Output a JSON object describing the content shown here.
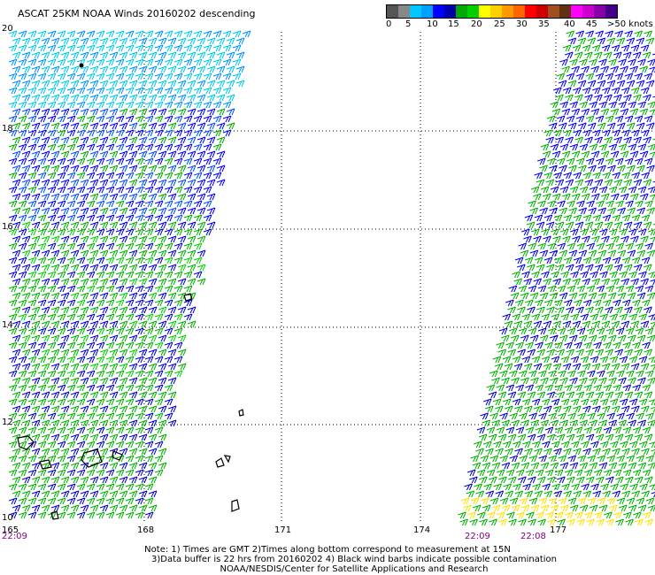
{
  "title": "ASCAT 25KM NOAA Winds 20160202 descending",
  "legend": {
    "colors": [
      "#555555",
      "#888888",
      "#00c8ff",
      "#00a0ff",
      "#0000ff",
      "#0000aa",
      "#00aa00",
      "#00d000",
      "#ffff00",
      "#ffd000",
      "#ff9900",
      "#ff6600",
      "#ff0000",
      "#cc0000",
      "#a05020",
      "#603010",
      "#ff00ff",
      "#cc00cc",
      "#8800aa",
      "#440088"
    ],
    "labels": [
      "0",
      "5",
      "10",
      "15",
      "20",
      "25",
      "30",
      "35",
      "40",
      "45",
      ">50 knots"
    ]
  },
  "map": {
    "lat_labels": [
      "20",
      "18",
      "16",
      "14",
      "12",
      "10"
    ],
    "lon_labels": [
      "165",
      "168",
      "171",
      "174",
      "177"
    ],
    "time_labels": [
      "22:09",
      "22:09",
      "22:08"
    ]
  },
  "notes": {
    "line1": "Note: 1) Times are GMT 2)Times along bottom correspond to measurement at 15N",
    "line2": "3)Data buffer is 22 hrs from 20160202 4) Black wind barbs indicate possible contamination",
    "line3": "NOAA/NESDIS/Center for Satellite Applications and Research"
  }
}
